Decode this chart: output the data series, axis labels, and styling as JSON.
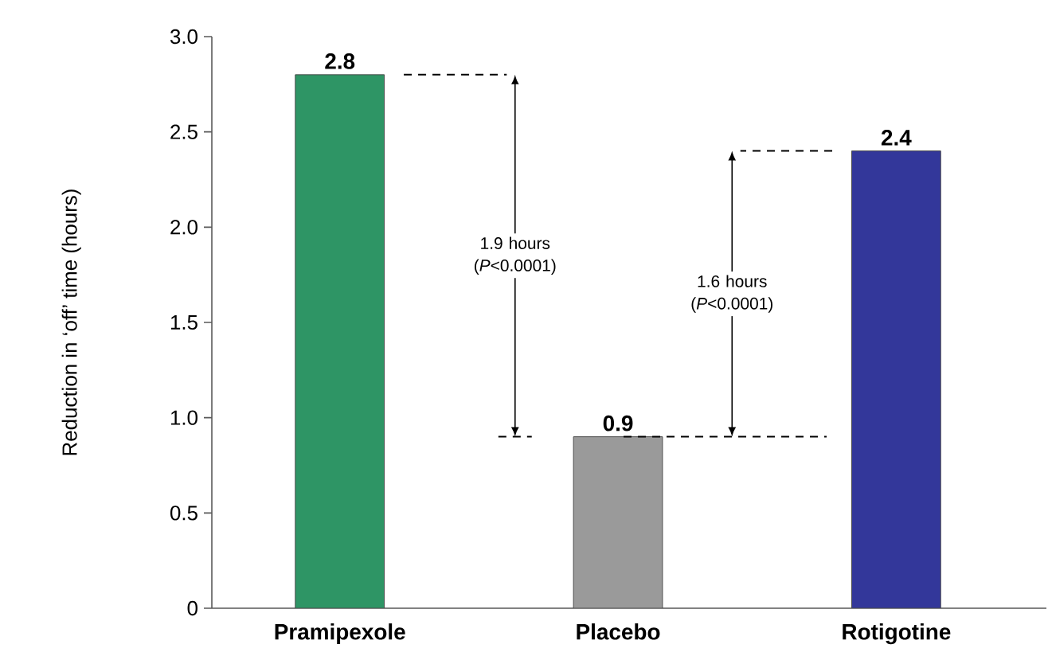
{
  "chart_data": {
    "type": "bar",
    "ylabel": "Reduction in ‘off’ time (hours)",
    "categories": [
      "Pramipexole",
      "Placebo",
      "Rotigotine"
    ],
    "values": [
      2.8,
      0.9,
      2.4
    ],
    "colors": [
      "#2e9565",
      "#9a9a9a",
      "#33379a"
    ],
    "data_labels": true,
    "ylim": [
      0,
      3
    ],
    "yticks": [
      0,
      0.5,
      {
        "value": 1,
        "label": "1.0"
      },
      1.5,
      {
        "value": 2,
        "label": "2.0"
      },
      2.5,
      {
        "value": 3,
        "label": "3.0"
      }
    ],
    "annotations": [
      "1.9 hours (*P*<0.0001)",
      "1.6 hours (*P*<0.0001)"
    ],
    "grid": false
  }
}
